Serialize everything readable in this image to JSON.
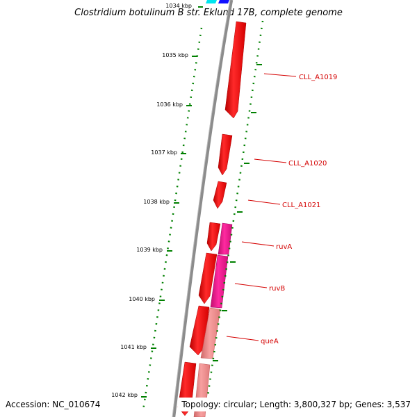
{
  "title": "Clostridium botulinum B str. Eklund 17B, complete genome",
  "footer": {
    "accession": "Accession: NC_010674",
    "topology": "Topology: circular; Length: 3,800,327 bp; Genes: 3,537"
  },
  "ticks": [
    "1034 kbp",
    "1035 kbp",
    "1036 kbp",
    "1037 kbp",
    "1038 kbp",
    "1039 kbp",
    "1040 kbp",
    "1041 kbp",
    "1042 kbp"
  ],
  "genes": {
    "CLL_A1019": "CLL_A1019",
    "CLL_A1020": "CLL_A1020",
    "CLL_A1021": "CLL_A1021",
    "ruvA": "ruvA",
    "ruvB": "ruvB",
    "queA": "queA"
  },
  "colors": {
    "cds_red": "#ff0000",
    "cds_pink": "#ff1493",
    "cds_light": "#f08080",
    "backbone": "#808080",
    "tick_green": "#008000",
    "label_red": "#d40000"
  }
}
